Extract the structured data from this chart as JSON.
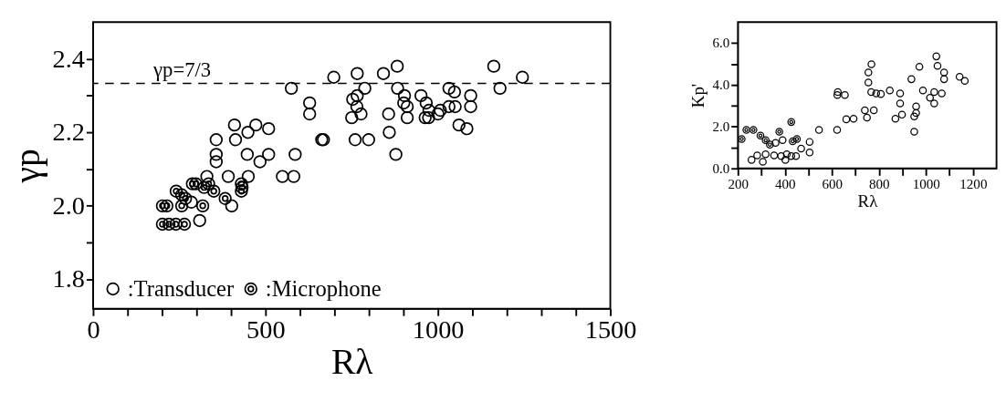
{
  "chart_data": [
    {
      "type": "scatter",
      "xlabel": "Rλ",
      "ylabel": "γp",
      "xlim": [
        0,
        1500
      ],
      "ylim": [
        1.72,
        2.5
      ],
      "xticks": [
        0,
        {
          "value": 100,
          "label": null
        },
        {
          "value": 200,
          "label": null
        },
        {
          "value": 300,
          "label": null
        },
        {
          "value": 400,
          "label": null
        },
        500,
        {
          "value": 600,
          "label": null
        },
        {
          "value": 700,
          "label": null
        },
        {
          "value": 800,
          "label": null
        },
        {
          "value": 900,
          "label": null
        },
        1000,
        {
          "value": 1100,
          "label": null
        },
        {
          "value": 1200,
          "label": null
        },
        {
          "value": 1300,
          "label": null
        },
        {
          "value": 1400,
          "label": null
        },
        1500
      ],
      "yticks": [
        {
          "value": 1.8,
          "label": "1.8"
        },
        {
          "value": 1.9,
          "label": null
        },
        {
          "value": 2.0,
          "label": "2.0"
        },
        {
          "value": 2.1,
          "label": null
        },
        {
          "value": 2.2,
          "label": "2.2"
        },
        {
          "value": 2.3,
          "label": null
        },
        {
          "value": 2.4,
          "label": "2.4"
        }
      ],
      "grid": false,
      "legend": "bottom left",
      "ref_lines": [
        {
          "axis": "y",
          "value": 2.3333333,
          "line_style": "dashed",
          "color": "#000000"
        }
      ],
      "annotations": [
        {
          "text": "γp=7/3",
          "x": 175,
          "y": 2.3333333
        }
      ],
      "series": [
        {
          "name": ":Transducer",
          "color": "#000000",
          "marker": "circle",
          "x": [
            285,
            309,
            402,
            392,
            330,
            357,
            357,
            357,
            410,
            413,
            449,
            472,
            447,
            450,
            484,
            509,
            509,
            549,
            582,
            586,
            575,
            628,
            628,
            698,
            663,
            668,
            766,
            753,
            766,
            788,
            765,
            777,
            750,
            760,
            799,
            842,
            882,
            883,
            903,
            901,
            911,
            911,
            857,
            859,
            878,
            951,
            966,
            974,
            963,
            973,
            1000,
            1007,
            1032,
            1048,
            1032,
            1050,
            1061,
            1084,
            1095,
            1095,
            1162,
            1180,
            1245
          ],
          "values": [
            2.01,
            1.96,
            2.0,
            2.08,
            2.08,
            2.18,
            2.14,
            2.12,
            2.22,
            2.18,
            2.2,
            2.22,
            2.14,
            2.08,
            2.12,
            2.21,
            2.14,
            2.08,
            2.08,
            2.14,
            2.32,
            2.28,
            2.25,
            2.35,
            2.18,
            2.18,
            2.36,
            2.29,
            2.3,
            2.32,
            2.27,
            2.25,
            2.24,
            2.18,
            2.18,
            2.36,
            2.38,
            2.32,
            2.3,
            2.28,
            2.27,
            2.24,
            2.25,
            2.2,
            2.14,
            2.3,
            2.28,
            2.26,
            2.24,
            2.24,
            2.25,
            2.26,
            2.32,
            2.31,
            2.27,
            2.27,
            2.22,
            2.21,
            2.3,
            2.27,
            2.38,
            2.32,
            2.35
          ]
        },
        {
          "name": ":Microphone",
          "color": "#000000",
          "x": [
            201,
            214,
            201,
            220,
            240,
            265,
            241,
            257,
            268,
            257,
            288,
            298,
            318,
            322,
            335,
            350,
            383,
            430,
            432,
            430
          ],
          "values": [
            2.0,
            2.0,
            1.95,
            1.95,
            1.95,
            1.95,
            2.04,
            2.03,
            2.02,
            2.0,
            2.06,
            2.06,
            2.0,
            2.05,
            2.06,
            2.04,
            2.02,
            2.06,
            2.05,
            2.04
          ]
        }
      ]
    },
    {
      "type": "scatter",
      "xlabel": "Rλ",
      "ylabel": "Kp'",
      "xlim": [
        200,
        1300
      ],
      "ylim": [
        0,
        7
      ],
      "xticks": [
        200,
        {
          "value": 300,
          "label": null
        },
        400,
        {
          "value": 500,
          "label": null
        },
        600,
        {
          "value": 700,
          "label": null
        },
        800,
        {
          "value": 900,
          "label": null
        },
        1000,
        {
          "value": 1100,
          "label": null
        },
        1200
      ],
      "yticks": [
        {
          "value": 0,
          "label": "0.0"
        },
        {
          "value": 1,
          "label": null
        },
        {
          "value": 2,
          "label": "2.0"
        },
        {
          "value": 3,
          "label": null
        },
        {
          "value": 4,
          "label": "4.0"
        },
        {
          "value": 5,
          "label": null
        },
        {
          "value": 6,
          "label": "6.0"
        }
      ],
      "grid": false,
      "series": [
        {
          "color": "#000000",
          "marker": "circle",
          "x": [
            258,
            282,
            306,
            318,
            354,
            360,
            390,
            384,
            402,
            408,
            427,
            447,
            469,
            505,
            505,
            545,
            622,
            623,
            625,
            655,
            661,
            692,
            740,
            749,
            755,
            755,
            767,
            778,
            788,
            846,
            870,
            890,
            890,
            898,
            938,
            950,
            950,
            958,
            958,
            987,
            1017,
            1035,
            1035,
            1067,
            1077,
            1077,
            1143,
            1165,
            768,
            808,
            1044,
            1049,
            972
          ],
          "values": [
            0.41,
            0.62,
            0.32,
            0.68,
            0.62,
            1.22,
            1.35,
            0.59,
            0.41,
            0.68,
            0.59,
            0.59,
            0.95,
            1.27,
            0.76,
            1.84,
            1.84,
            3.51,
            3.65,
            3.51,
            2.35,
            2.38,
            2.78,
            2.43,
            4.59,
            4.11,
            3.65,
            2.78,
            3.59,
            3.73,
            2.38,
            3.59,
            3.11,
            2.57,
            4.27,
            2.49,
            1.76,
            2.97,
            2.65,
            3.73,
            3.38,
            3.65,
            3.11,
            3.59,
            4.59,
            4.27,
            4.38,
            4.19,
            4.98,
            3.56,
            5.36,
            4.91,
            4.86
          ]
        },
        {
          "color": "#000000",
          "x": [
            216,
            236,
            266,
            296,
            318,
            336,
            376,
            427,
            433,
            451
          ],
          "values": [
            1.41,
            1.84,
            1.84,
            1.57,
            1.35,
            1.14,
            1.76,
            2.22,
            1.3,
            1.41
          ]
        }
      ]
    }
  ]
}
